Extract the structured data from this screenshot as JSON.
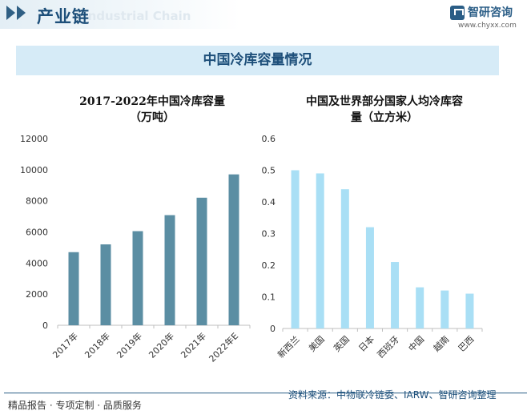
{
  "header": {
    "title": "产业链",
    "subtitle": "Industrial Chain",
    "logo_name": "智研咨询",
    "logo_url": "www.chyxx.com"
  },
  "banner": {
    "title": "中国冷库容量情况"
  },
  "footer": {
    "left": "精品报告 · 专项定制 · 品质服务",
    "right": "资料来源：中物联冷链委、IARW、智研咨询整理"
  },
  "colors": {
    "left_bar": "#5b8ea3",
    "right_bar": "#a9dff5",
    "axis": "#bfbfbf"
  },
  "chart_data": [
    {
      "type": "bar",
      "title": "2017-2022年中国冷库容量（万吨）",
      "title_lines": [
        "2017-2022年中国冷库容量",
        "（万吨）"
      ],
      "categories": [
        "2017年",
        "2018年",
        "2019年",
        "2020年",
        "2021年",
        "2022年E"
      ],
      "values": [
        4700,
        5200,
        6050,
        7080,
        8200,
        9700
      ],
      "yticks": [
        0,
        2000,
        4000,
        6000,
        8000,
        10000,
        12000
      ],
      "ylim": [
        0,
        12000
      ],
      "grid": false
    },
    {
      "type": "bar",
      "title": "中国及世界部分国家人均冷库容量（立方米）",
      "title_lines": [
        "中国及世界部分国家人均冷库容",
        "量（立方米）"
      ],
      "categories": [
        "新西兰",
        "美国",
        "英国",
        "日本",
        "西班牙",
        "中国",
        "越南",
        "巴西"
      ],
      "values": [
        0.5,
        0.49,
        0.44,
        0.32,
        0.21,
        0.13,
        0.12,
        0.11
      ],
      "yticks": [
        "0",
        "0.1",
        "0.2",
        "0.3",
        "0.4",
        "0.5",
        "0.6"
      ],
      "ylim": [
        0,
        0.6
      ],
      "grid": false
    }
  ]
}
